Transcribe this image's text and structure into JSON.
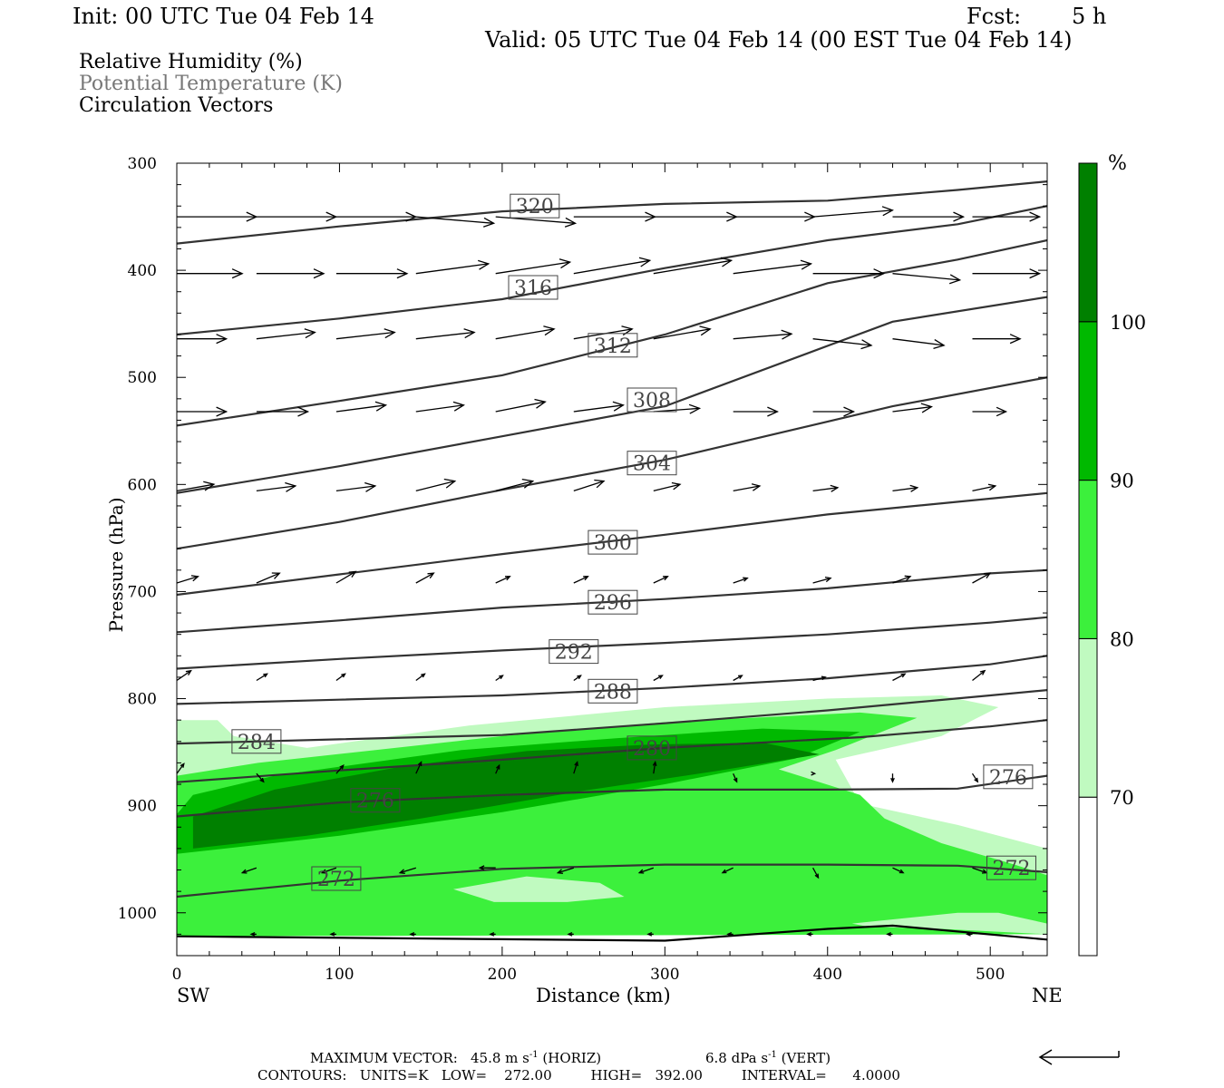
{
  "header": {
    "init": "Init: 00 UTC Tue 04 Feb 14",
    "fcst_label": "Fcst:",
    "fcst_value": "5 h",
    "valid": "Valid: 05 UTC Tue 04 Feb 14 (00 EST Tue 04 Feb 14)"
  },
  "fields": {
    "rh": "Relative Humidity (%)",
    "theta": "Potential Temperature (K)",
    "circ": "Circulation Vectors"
  },
  "footer": {
    "max_vector_label": "MAXIMUM VECTOR:",
    "horiz_value": "45.8 m s",
    "horiz_exp": "-1",
    "horiz_tag": "(HORIZ)",
    "vert_value": "6.8 dPa s",
    "vert_exp": "-1",
    "vert_tag": "(VERT)",
    "contours": "CONTOURS:   UNITS=K   LOW=    272.00         HIGH=   392.00         INTERVAL=      4.0000"
  },
  "colors": {
    "axis": "#000000",
    "contour": "#333333",
    "rh_70": "#c0fac0",
    "rh_80": "#3cf03c",
    "rh_90": "#00b900",
    "rh_100": "#008000"
  },
  "chart_data": {
    "type": "cross-section",
    "x": {
      "label": "Distance (km)",
      "range": [
        0,
        535
      ],
      "ticks": [
        0,
        100,
        200,
        300,
        400,
        500
      ],
      "left_label": "SW",
      "right_label": "NE"
    },
    "y": {
      "label": "Pressure (hPa)",
      "range": [
        300,
        1040
      ],
      "inverted": true,
      "ticks": [
        300,
        400,
        500,
        600,
        700,
        800,
        900,
        1000
      ]
    },
    "colorbar": {
      "unit": "%",
      "levels": [
        70,
        80,
        90,
        100
      ],
      "colors": [
        "#ffffff",
        "#c0fac0",
        "#3cf03c",
        "#00b900",
        "#008000"
      ]
    },
    "theta_contours": [
      {
        "value": 320,
        "label": "320",
        "points": [
          [
            0,
            375
          ],
          [
            100,
            359
          ],
          [
            200,
            345
          ],
          [
            300,
            338
          ],
          [
            400,
            335
          ],
          [
            480,
            325
          ],
          [
            535,
            317
          ]
        ]
      },
      {
        "value": 316,
        "label": "316",
        "points": [
          [
            0,
            460
          ],
          [
            100,
            445
          ],
          [
            200,
            427
          ],
          [
            300,
            398
          ],
          [
            400,
            372
          ],
          [
            480,
            357
          ],
          [
            535,
            340
          ]
        ]
      },
      {
        "value": 312,
        "label": "312",
        "points": [
          [
            0,
            545
          ],
          [
            100,
            522
          ],
          [
            200,
            498
          ],
          [
            300,
            460
          ],
          [
            400,
            412
          ],
          [
            480,
            390
          ],
          [
            535,
            372
          ]
        ]
      },
      {
        "value": 308,
        "label": "308",
        "points": [
          [
            0,
            608
          ],
          [
            100,
            583
          ],
          [
            200,
            555
          ],
          [
            300,
            527
          ],
          [
            440,
            448
          ],
          [
            535,
            425
          ]
        ]
      },
      {
        "value": 304,
        "label": "304",
        "points": [
          [
            0,
            660
          ],
          [
            100,
            635
          ],
          [
            200,
            605
          ],
          [
            300,
            577
          ],
          [
            440,
            527
          ],
          [
            535,
            500
          ]
        ]
      },
      {
        "value": 300,
        "label": "300",
        "points": [
          [
            0,
            703
          ],
          [
            100,
            684
          ],
          [
            200,
            665
          ],
          [
            300,
            647
          ],
          [
            400,
            628
          ],
          [
            535,
            608
          ]
        ]
      },
      {
        "value": 296,
        "label": "296",
        "points": [
          [
            0,
            738
          ],
          [
            100,
            727
          ],
          [
            200,
            715
          ],
          [
            300,
            707
          ],
          [
            400,
            697
          ],
          [
            500,
            683
          ],
          [
            535,
            680
          ]
        ]
      },
      {
        "value": 292,
        "label": "292",
        "points": [
          [
            0,
            772
          ],
          [
            100,
            763
          ],
          [
            200,
            755
          ],
          [
            300,
            748
          ],
          [
            400,
            740
          ],
          [
            500,
            729
          ],
          [
            535,
            724
          ]
        ]
      },
      {
        "value": 288,
        "label": "288",
        "points": [
          [
            0,
            805
          ],
          [
            100,
            801
          ],
          [
            200,
            797
          ],
          [
            300,
            790
          ],
          [
            400,
            781
          ],
          [
            500,
            768
          ],
          [
            535,
            760
          ]
        ]
      },
      {
        "value": 284,
        "label": "284",
        "points": [
          [
            0,
            842
          ],
          [
            100,
            838
          ],
          [
            200,
            834
          ],
          [
            300,
            823
          ],
          [
            400,
            811
          ],
          [
            500,
            797
          ],
          [
            535,
            792
          ]
        ]
      },
      {
        "value": 280,
        "label": "280",
        "points": [
          [
            0,
            878
          ],
          [
            100,
            867
          ],
          [
            200,
            857
          ],
          [
            300,
            846
          ],
          [
            420,
            836
          ],
          [
            500,
            826
          ],
          [
            535,
            820
          ]
        ]
      },
      {
        "value": 276,
        "label": "276",
        "points": [
          [
            0,
            910
          ],
          [
            100,
            897
          ],
          [
            200,
            890
          ],
          [
            300,
            885
          ],
          [
            400,
            885
          ],
          [
            480,
            884
          ],
          [
            535,
            872
          ]
        ]
      },
      {
        "value": 272,
        "label": "272",
        "points": [
          [
            0,
            985
          ],
          [
            100,
            970
          ],
          [
            200,
            959
          ],
          [
            300,
            955
          ],
          [
            400,
            955
          ],
          [
            480,
            956
          ],
          [
            535,
            962
          ]
        ]
      }
    ],
    "theta_labels": [
      {
        "value": "320",
        "x": 220,
        "p": 340
      },
      {
        "value": "316",
        "x": 219,
        "p": 416
      },
      {
        "value": "312",
        "x": 268,
        "p": 470
      },
      {
        "value": "308",
        "x": 292,
        "p": 521
      },
      {
        "value": "304",
        "x": 292,
        "p": 580
      },
      {
        "value": "300",
        "x": 268,
        "p": 654
      },
      {
        "value": "296",
        "x": 268,
        "p": 710
      },
      {
        "value": "292",
        "x": 244,
        "p": 756
      },
      {
        "value": "288",
        "x": 268,
        "p": 793
      },
      {
        "value": "284",
        "x": 49,
        "p": 840
      },
      {
        "value": "280",
        "x": 292,
        "p": 846
      },
      {
        "value": "276",
        "x": 122,
        "p": 895
      },
      {
        "value": "276",
        "x": 511,
        "p": 873
      },
      {
        "value": "272",
        "x": 98,
        "p": 968
      },
      {
        "value": "272",
        "x": 513,
        "p": 958
      }
    ],
    "rh_regions": [
      {
        "level": 70,
        "points": [
          [
            0,
            820
          ],
          [
            25,
            820
          ],
          [
            35,
            835
          ],
          [
            80,
            846
          ],
          [
            180,
            825
          ],
          [
            300,
            808
          ],
          [
            400,
            800
          ],
          [
            470,
            797
          ],
          [
            505,
            808
          ],
          [
            470,
            835
          ],
          [
            405,
            857
          ],
          [
            420,
            898
          ],
          [
            480,
            918
          ],
          [
            535,
            940
          ],
          [
            535,
            1020
          ],
          [
            0,
            1020
          ]
        ]
      },
      {
        "level": 80,
        "points": [
          [
            0,
            872
          ],
          [
            50,
            860
          ],
          [
            200,
            835
          ],
          [
            300,
            822
          ],
          [
            420,
            813
          ],
          [
            455,
            818
          ],
          [
            405,
            848
          ],
          [
            370,
            866
          ],
          [
            420,
            890
          ],
          [
            435,
            912
          ],
          [
            470,
            935
          ],
          [
            515,
            955
          ],
          [
            535,
            965
          ],
          [
            535,
            1010
          ],
          [
            505,
            1000
          ],
          [
            480,
            1000
          ],
          [
            415,
            1010
          ],
          [
            425,
            1013
          ],
          [
            470,
            1015
          ],
          [
            535,
            1020
          ],
          [
            0,
            1022
          ]
        ]
      },
      {
        "level": 90,
        "points": [
          [
            0,
            908
          ],
          [
            10,
            890
          ],
          [
            60,
            872
          ],
          [
            175,
            848
          ],
          [
            270,
            837
          ],
          [
            360,
            828
          ],
          [
            420,
            831
          ],
          [
            380,
            856
          ],
          [
            300,
            880
          ],
          [
            200,
            906
          ],
          [
            100,
            928
          ],
          [
            0,
            945
          ]
        ]
      },
      {
        "level": 100,
        "points": [
          [
            10,
            910
          ],
          [
            60,
            885
          ],
          [
            140,
            863
          ],
          [
            215,
            849
          ],
          [
            290,
            843
          ],
          [
            360,
            841
          ],
          [
            395,
            852
          ],
          [
            330,
            868
          ],
          [
            250,
            886
          ],
          [
            150,
            912
          ],
          [
            80,
            928
          ],
          [
            10,
            940
          ]
        ]
      }
    ],
    "rh_dry_pockets": [
      {
        "level": 70,
        "points": [
          [
            170,
            978
          ],
          [
            215,
            966
          ],
          [
            260,
            972
          ],
          [
            275,
            985
          ],
          [
            240,
            990
          ],
          [
            195,
            990
          ]
        ]
      }
    ],
    "surface": [
      [
        0,
        1022
      ],
      [
        300,
        1026
      ],
      [
        400,
        1015
      ],
      [
        440,
        1012
      ],
      [
        535,
        1025
      ]
    ],
    "vectors": {
      "x": [
        0,
        49,
        98,
        147,
        196,
        244,
        293,
        342,
        391,
        440,
        489
      ],
      "rows": [
        {
          "p": 350,
          "u": [
            45,
            45,
            45,
            44,
            45,
            46,
            47,
            46,
            45,
            40,
            38
          ],
          "w": [
            0,
            0,
            0,
            0.4,
            0.4,
            0,
            0,
            0,
            -0.4,
            0,
            0
          ]
        },
        {
          "p": 403,
          "u": [
            37,
            38,
            40,
            41,
            42,
            43,
            44,
            44,
            40,
            38,
            38
          ],
          "w": [
            0,
            0,
            0,
            -0.6,
            -0.7,
            -0.8,
            -0.8,
            -0.6,
            0,
            0.4,
            0
          ]
        },
        {
          "p": 464,
          "u": [
            28,
            33,
            33,
            33,
            33,
            33,
            32,
            33,
            33,
            29,
            27
          ],
          "w": [
            0,
            -0.4,
            -0.4,
            -0.4,
            -0.6,
            -0.6,
            -0.6,
            -0.3,
            0.4,
            0.4,
            0
          ]
        },
        {
          "p": 532,
          "u": [
            28,
            29,
            28,
            27,
            28,
            28,
            26,
            25,
            23,
            22,
            19
          ],
          "w": [
            0,
            0,
            -0.4,
            -0.4,
            -0.6,
            -0.4,
            -0.2,
            0,
            0,
            -0.3,
            0
          ]
        },
        {
          "p": 606,
          "u": [
            21,
            22,
            22,
            22,
            21,
            17,
            15,
            15,
            14,
            14,
            13
          ],
          "w": [
            -0.4,
            -0.3,
            -0.3,
            -0.6,
            -0.6,
            -0.6,
            -0.4,
            -0.3,
            -0.2,
            -0.2,
            -0.3
          ]
        },
        {
          "p": 692,
          "u": [
            12,
            13,
            11,
            10,
            8,
            8,
            8,
            8,
            10,
            10,
            10
          ],
          "w": [
            -0.4,
            -0.6,
            -0.7,
            -0.6,
            -0.4,
            -0.4,
            -0.4,
            -0.3,
            -0.3,
            -0.4,
            -0.6
          ]
        },
        {
          "p": 783,
          "u": [
            8,
            6,
            5,
            5,
            4,
            4,
            5,
            5,
            7,
            7,
            7
          ],
          "w": [
            -0.6,
            -0.4,
            -0.4,
            -0.4,
            -0.3,
            -0.3,
            -0.3,
            -0.3,
            -0.2,
            -0.4,
            -0.6
          ]
        },
        {
          "p": 870,
          "u": [
            4,
            4,
            4,
            3,
            2,
            2,
            1,
            2,
            1,
            0,
            3
          ],
          "w": [
            -0.6,
            0.5,
            -0.5,
            -0.7,
            -0.5,
            -0.7,
            -0.7,
            0.5,
            0,
            0.5,
            0.5
          ]
        },
        {
          "p": 958,
          "u": [
            -8,
            -8,
            -8,
            -9,
            -9,
            -9,
            -8,
            -6,
            3,
            6,
            8
          ],
          "w": [
            0.3,
            0.3,
            0.3,
            0.3,
            0,
            0.3,
            0.3,
            0.3,
            0.6,
            0.3,
            0.3
          ]
        },
        {
          "p": 1020,
          "u": [
            -3,
            -3,
            -3,
            -3,
            -3,
            -3,
            -3,
            -3,
            -3,
            -3,
            -3
          ],
          "w": [
            0,
            0,
            0,
            0,
            0,
            0,
            0,
            0,
            0,
            0,
            0
          ]
        }
      ]
    },
    "reference_vector": {
      "horiz_ms": 45.8,
      "vert_dPa_s": 6.8
    }
  }
}
